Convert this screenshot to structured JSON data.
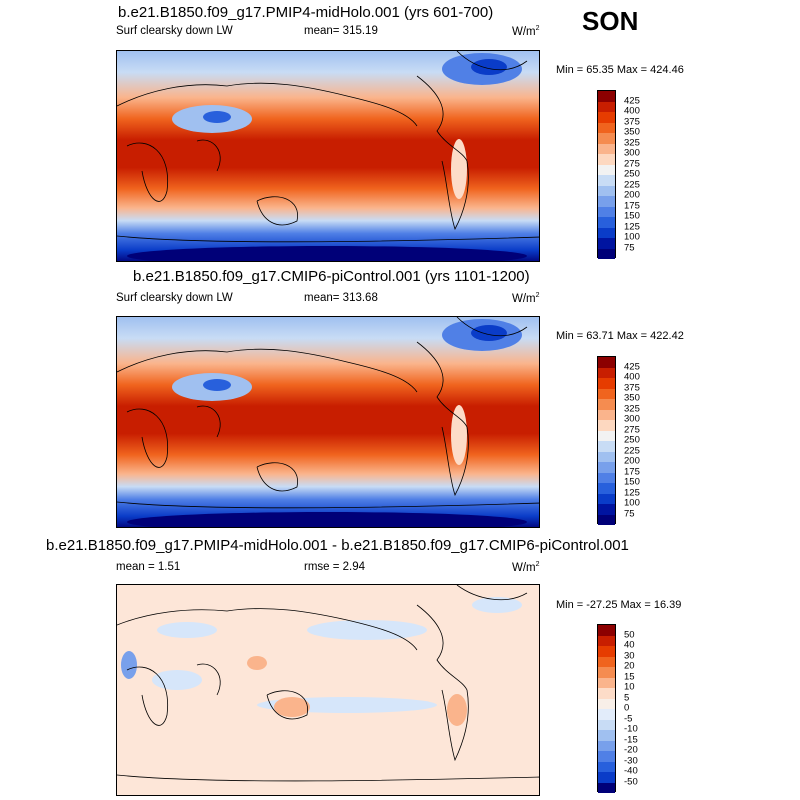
{
  "season": "SON",
  "panels": [
    {
      "title": "b.e21.B1850.f09_g17.PMIP4-midHolo.001 (yrs 601-700)",
      "left_label": "Surf clearsky down LW",
      "center_label": "mean= 315.19",
      "units": "W/m",
      "units_sup": "2",
      "minmax": "Min =  65.35 Max = 424.46",
      "colorbar": {
        "labels": [
          "425",
          "400",
          "375",
          "350",
          "325",
          "300",
          "275",
          "250",
          "225",
          "200",
          "175",
          "150",
          "125",
          "100",
          "75"
        ],
        "colors": [
          "#8c0000",
          "#c81e00",
          "#e63c00",
          "#f0641e",
          "#f58c50",
          "#fab48c",
          "#fdd8c0",
          "#f2f2f2",
          "#c8dcf5",
          "#a0c0f0",
          "#78a0eb",
          "#5080e6",
          "#2860dc",
          "#0a3cc8",
          "#0014a0",
          "#000078"
        ]
      }
    },
    {
      "title": "b.e21.B1850.f09_g17.CMIP6-piControl.001 (yrs 1101-1200)",
      "left_label": "Surf clearsky down LW",
      "center_label": "mean= 313.68",
      "units": "W/m",
      "units_sup": "2",
      "minmax": "Min =  63.71 Max = 422.42",
      "colorbar": {
        "labels": [
          "425",
          "400",
          "375",
          "350",
          "325",
          "300",
          "275",
          "250",
          "225",
          "200",
          "175",
          "150",
          "125",
          "100",
          "75"
        ],
        "colors": [
          "#8c0000",
          "#c81e00",
          "#e63c00",
          "#f0641e",
          "#f58c50",
          "#fab48c",
          "#fdd8c0",
          "#f2f2f2",
          "#c8dcf5",
          "#a0c0f0",
          "#78a0eb",
          "#5080e6",
          "#2860dc",
          "#0a3cc8",
          "#0014a0",
          "#000078"
        ]
      }
    },
    {
      "title": "b.e21.B1850.f09_g17.PMIP4-midHolo.001 - b.e21.B1850.f09_g17.CMIP6-piControl.001",
      "left_label": "mean =   1.51",
      "center_label": "rmse =   2.94",
      "units": "W/m",
      "units_sup": "2",
      "minmax": "Min = -27.25 Max =  16.39",
      "colorbar": {
        "labels": [
          "50",
          "40",
          "30",
          "20",
          "15",
          "10",
          "5",
          "0",
          "-5",
          "-10",
          "-15",
          "-20",
          "-30",
          "-40",
          "-50"
        ],
        "colors": [
          "#8c0000",
          "#c81e00",
          "#e63c00",
          "#f0641e",
          "#f58c50",
          "#fab48c",
          "#fddcc8",
          "#f8efe8",
          "#e2ecfa",
          "#c8dcf5",
          "#a0c0f0",
          "#78a0eb",
          "#5080e6",
          "#2860dc",
          "#0a3cc8",
          "#000078"
        ]
      }
    }
  ]
}
